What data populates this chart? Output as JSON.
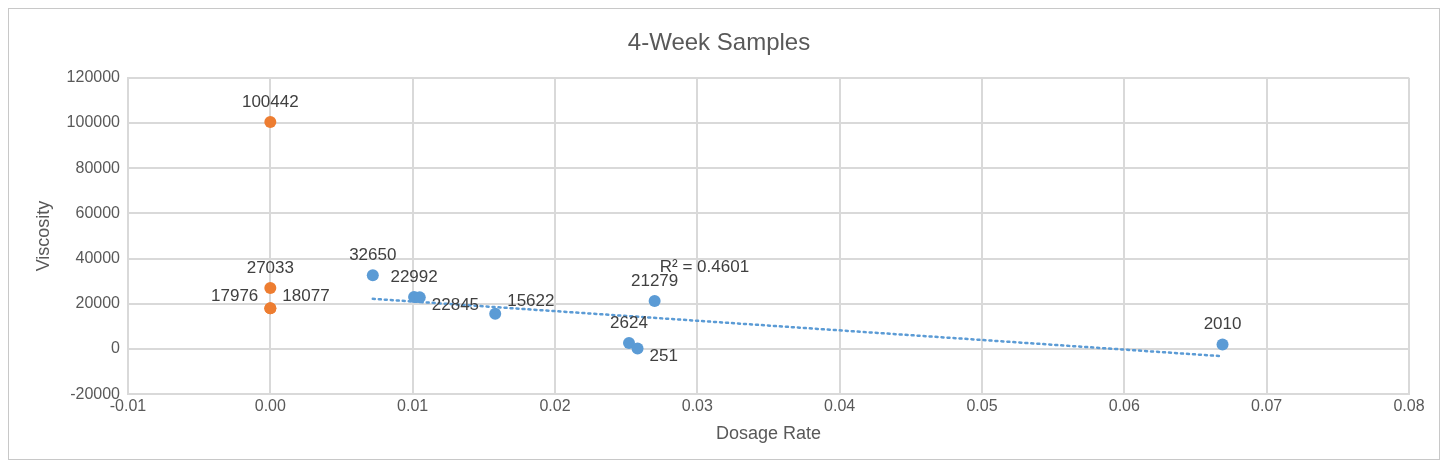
{
  "chart_data": {
    "type": "scatter",
    "title": "4-Week Samples",
    "xlabel": "Dosage Rate",
    "ylabel": "Viscosity",
    "xlim": [
      -0.01,
      0.08
    ],
    "xticks": [
      -0.01,
      {
        "value": 0,
        "label": "0.00"
      },
      0.01,
      0.02,
      0.03,
      0.04,
      0.05,
      0.06,
      0.07,
      0.08
    ],
    "ylim": [
      -20000,
      120000
    ],
    "yticks": [
      -20000,
      0,
      20000,
      40000,
      60000,
      80000,
      100000,
      120000
    ],
    "grid": true,
    "legend": false,
    "marker": "circle",
    "series": [
      {
        "color": "#5b9bd5",
        "x": [
          0.0072,
          0.0101,
          0.0105,
          0.0158,
          0.0252,
          0.0258,
          0.027,
          0.0669
        ],
        "values": [
          32650,
          22992,
          22845,
          15622,
          2624,
          251,
          21279,
          2010
        ],
        "value_labels": [
          "32650",
          "22992",
          "22845",
          "15622",
          "2624",
          "251",
          "21279",
          "2010"
        ]
      },
      {
        "color": "#ed7d31",
        "x": [
          0,
          0,
          0,
          0
        ],
        "values": [
          100442,
          27033,
          18077,
          17976
        ],
        "value_labels": [
          "100442",
          "27033",
          "18077",
          "17976"
        ]
      },
      {
        "type": "line",
        "color": "#5b9bd5",
        "line_style": "dotted",
        "marker": "none",
        "x": [
          0.0072,
          0.0669
        ],
        "values": [
          22200,
          -3200
        ]
      }
    ],
    "annotations": [
      "R² = 0.4601"
    ]
  }
}
